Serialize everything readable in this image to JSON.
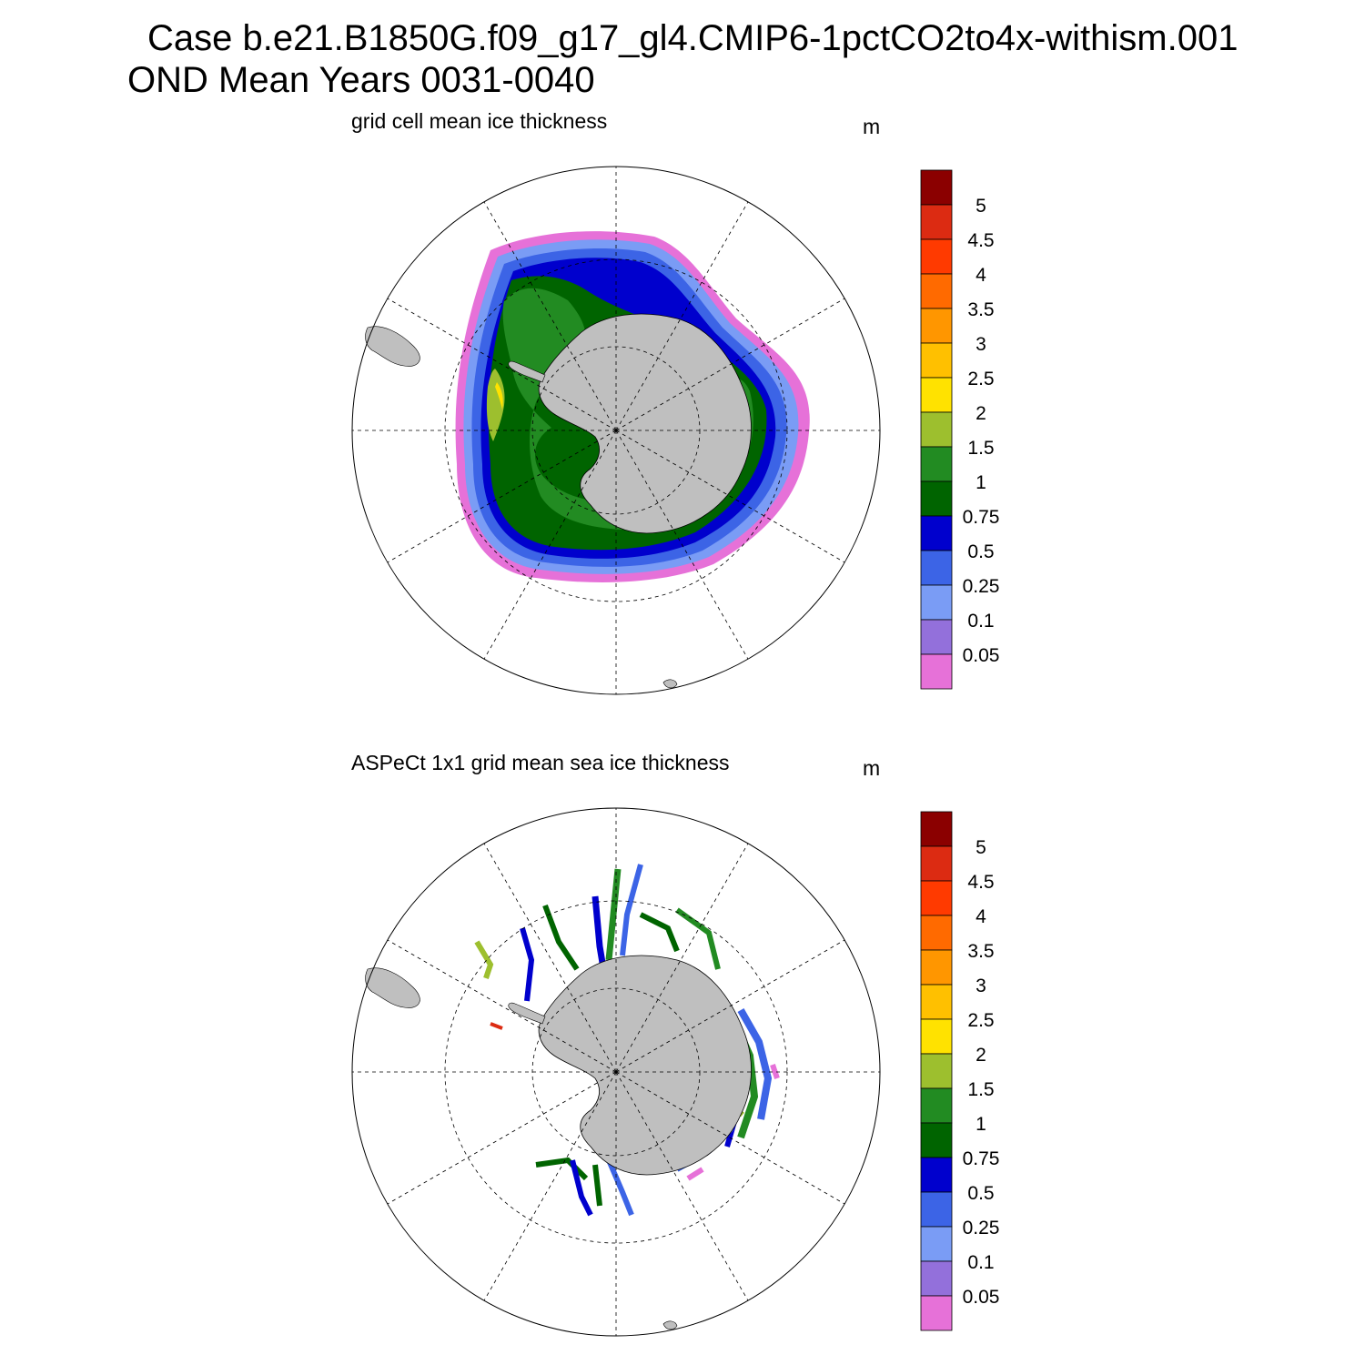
{
  "header": {
    "case_line": "Case b.e21.B1850G.f09_g17_gl4.CMIP6-1pctCO2to4x-withism.001",
    "period_line": "OND Mean   Years 0031-0040"
  },
  "panels": [
    {
      "subtitle": "grid cell mean ice thickness",
      "units": "m"
    },
    {
      "subtitle": "ASPeCt 1x1 grid mean sea ice thickness",
      "units": "m"
    }
  ],
  "colorbar": {
    "levels": [
      "5",
      "4.5",
      "4",
      "3.5",
      "3",
      "2.5",
      "2",
      "1.5",
      "1",
      "0.75",
      "0.5",
      "0.25",
      "0.1",
      "0.05"
    ],
    "colors": [
      "#8b0000",
      "#dc2b12",
      "#ff3a00",
      "#ff6a00",
      "#ff9600",
      "#ffc000",
      "#ffe200",
      "#9dbf2e",
      "#228b22",
      "#006400",
      "#0000cd",
      "#3c64e6",
      "#7a9cf5",
      "#9370db",
      "#e671d8"
    ]
  },
  "colors": {
    "land": "#bfbfbf",
    "grid": "#000000"
  }
}
